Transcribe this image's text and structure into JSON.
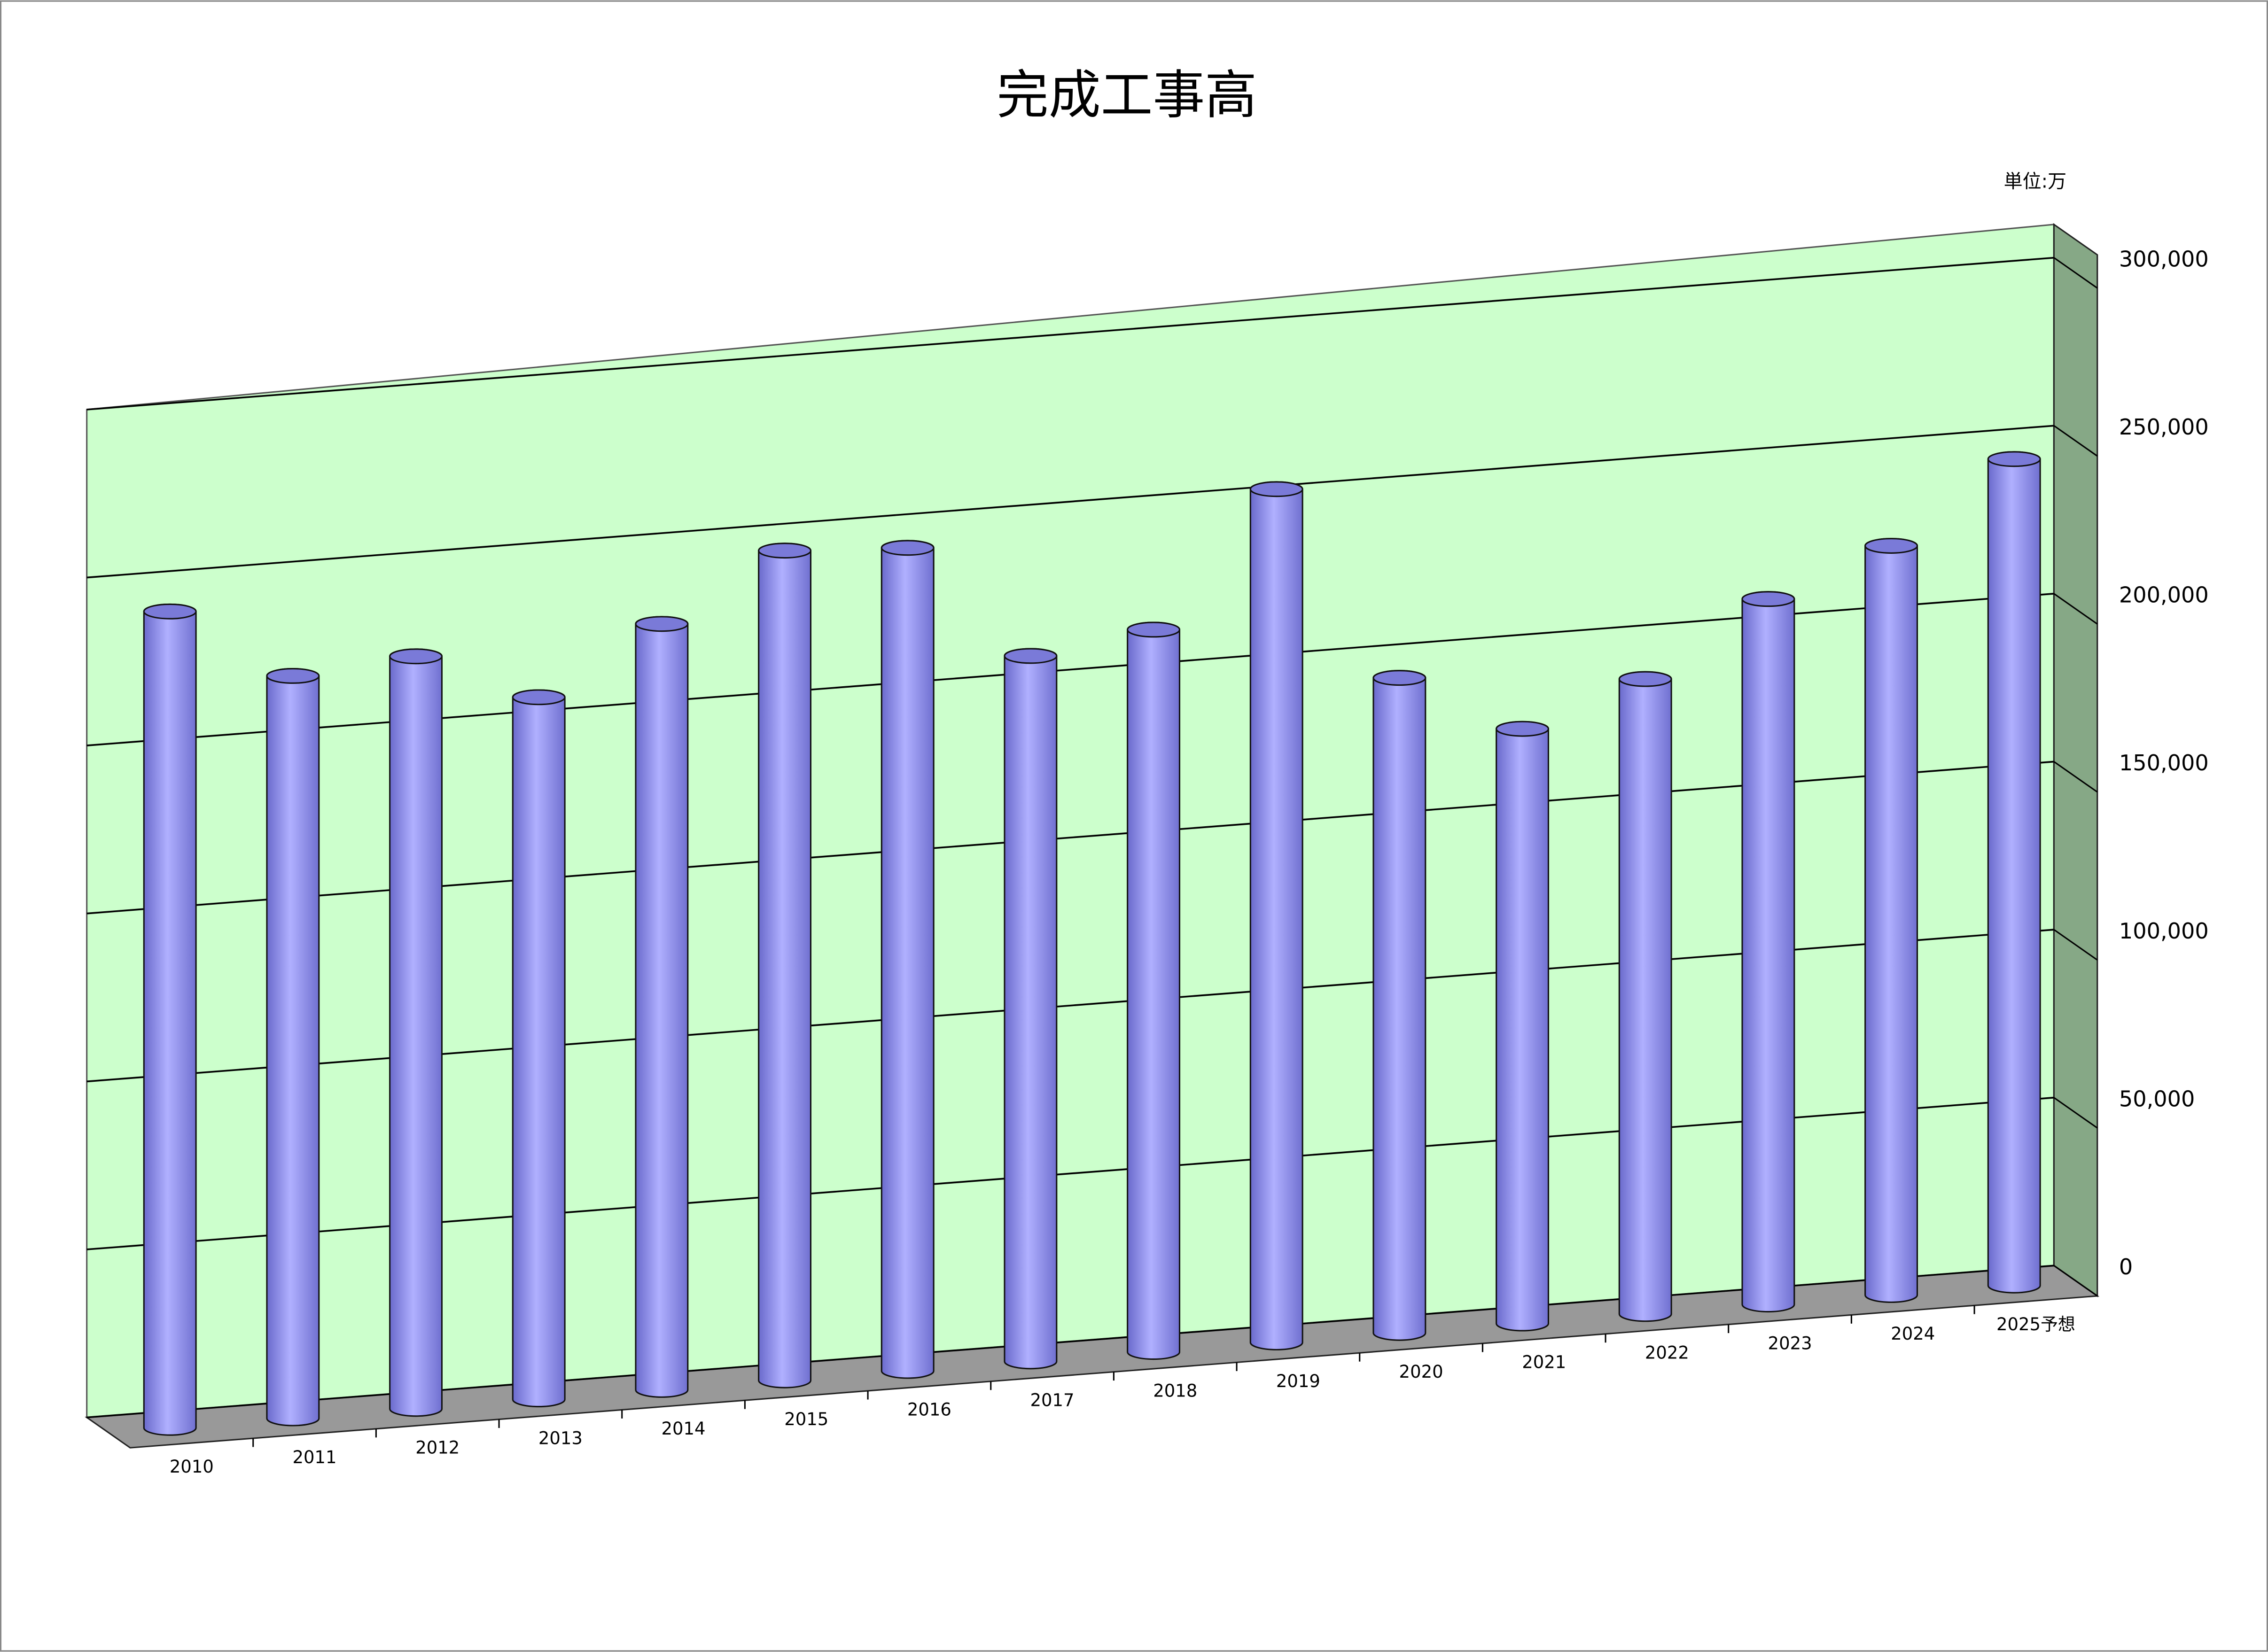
{
  "chart_data": {
    "type": "bar",
    "title": "完成工事高",
    "unit_label": "単位:万",
    "categories": [
      "2010",
      "2011",
      "2012",
      "2013",
      "2014",
      "2015",
      "2016",
      "2017",
      "2018",
      "2019",
      "2020",
      "2021",
      "2022",
      "2023",
      "2024",
      "2025予想"
    ],
    "values": [
      243000,
      221000,
      224000,
      209000,
      228000,
      247000,
      245000,
      210000,
      215000,
      254000,
      195000,
      177000,
      189000,
      210000,
      223000,
      246000
    ],
    "color": "#9999ff",
    "ylim": [
      0,
      300000
    ],
    "yticks": [
      0,
      {
        "value": 50000,
        "label": "50,000"
      },
      {
        "value": 100000,
        "label": "100,000"
      },
      {
        "value": 150000,
        "label": "150,000"
      },
      {
        "value": 200000,
        "label": "200,000"
      },
      {
        "value": 250000,
        "label": "250,000"
      },
      {
        "value": 300000,
        "label": "300,000"
      }
    ],
    "grid": true
  }
}
